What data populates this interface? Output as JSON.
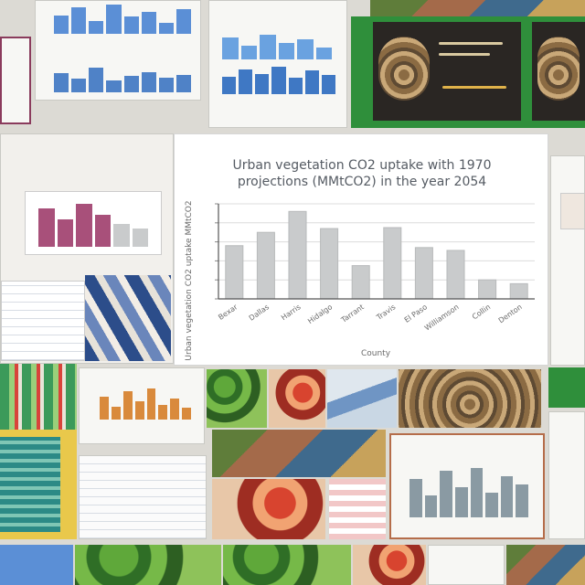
{
  "collage": {
    "main_chart": {
      "title_line1": "Urban vegetation CO2 uptake with 1970",
      "title_line2": "projections (MMtCO2) in the year 2054",
      "xlabel": "County",
      "ylabel": "Urban vegetation CO2 uptake MMtCO2",
      "bar_color": "#c9cbcc",
      "grid_color": "#dcdcdc"
    },
    "tile_colors": {
      "bar_blue": "#5b8fd6",
      "bar_pink": "#a8507a",
      "bar_orange": "#d98a3c",
      "bar_slate": "#8a9aa3",
      "forest_green": "#2f8f3b"
    }
  },
  "chart_data": {
    "type": "bar",
    "title": "Urban vegetation CO2 uptake with 1970 projections (MMtCO2) in the year 2054",
    "xlabel": "County",
    "ylabel": "Urban vegetation CO2 uptake MMtCO2",
    "categories": [
      "Bexar",
      "Dallas",
      "Harris",
      "Hidalgo",
      "Tarrant",
      "Travis",
      "El Paso",
      "Williamson",
      "Collin",
      "Denton"
    ],
    "values": [
      5.6,
      7.0,
      9.2,
      7.4,
      3.5,
      7.5,
      5.4,
      5.1,
      2.0,
      1.6
    ],
    "ylim": [
      0,
      10
    ],
    "grid": true,
    "legend": "none"
  }
}
